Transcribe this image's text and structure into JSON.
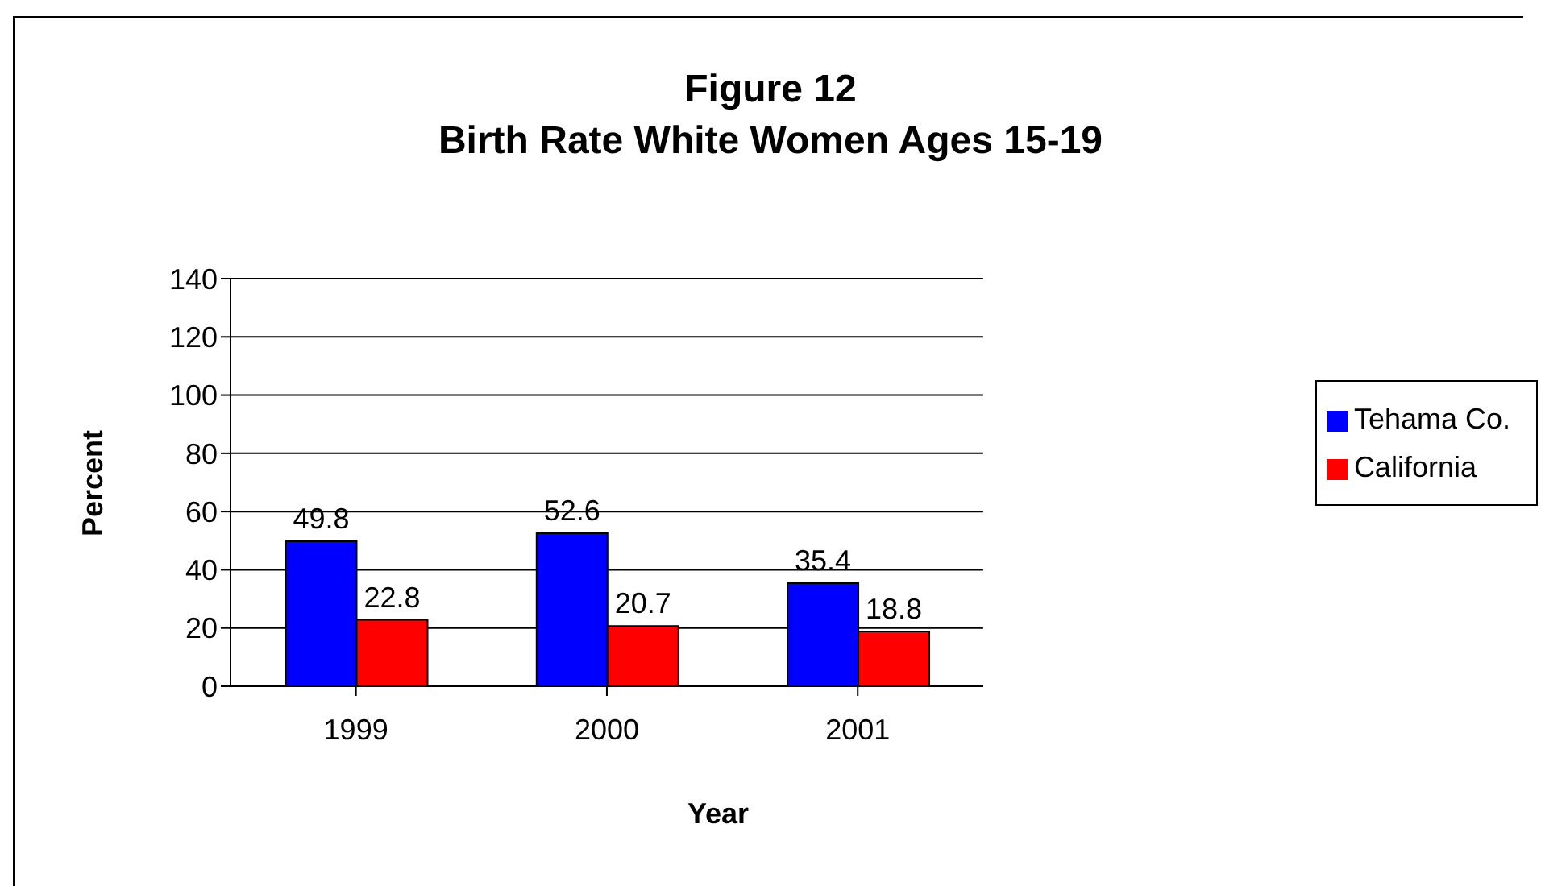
{
  "chart_data": {
    "type": "bar",
    "title": "Figure 12",
    "subtitle": "Birth Rate White Women Ages 15-19",
    "xlabel": "Year",
    "ylabel": "Percent",
    "categories": [
      "1999",
      "2000",
      "2001"
    ],
    "series": [
      {
        "name": "Tehama Co.",
        "color": "#0000ff",
        "values": [
          49.8,
          52.6,
          35.4
        ]
      },
      {
        "name": "California",
        "color": "#ff0000",
        "values": [
          22.8,
          20.7,
          18.8
        ]
      }
    ],
    "ylim": [
      0,
      140
    ],
    "yticks": [
      0,
      20,
      40,
      60,
      80,
      100,
      120,
      140
    ],
    "grid": "y",
    "legend": "right",
    "data_labels": true
  }
}
